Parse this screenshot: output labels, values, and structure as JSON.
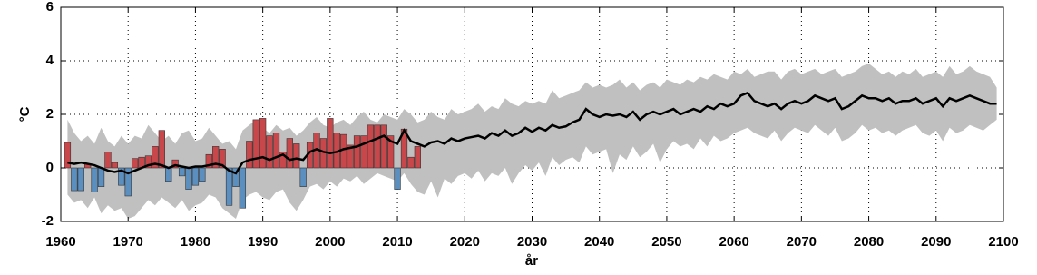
{
  "chart_data": {
    "type": "bar-band-line",
    "xlabel": "år",
    "ylabel": "°C",
    "xlim": [
      1960,
      2100
    ],
    "xticks": [
      1960,
      1970,
      1980,
      1990,
      2000,
      2010,
      2020,
      2030,
      2040,
      2050,
      2060,
      2070,
      2080,
      2090,
      2100
    ],
    "ylim": [
      -2,
      6
    ],
    "yticks": [
      -2,
      0,
      2,
      4,
      6
    ],
    "grid": true,
    "bars": {
      "positive_color": "#c8474b",
      "negative_color": "#5b8fbf",
      "x": [
        1961,
        1962,
        1963,
        1964,
        1965,
        1966,
        1967,
        1968,
        1969,
        1970,
        1971,
        1972,
        1973,
        1974,
        1975,
        1976,
        1977,
        1978,
        1979,
        1980,
        1981,
        1982,
        1983,
        1984,
        1985,
        1986,
        1987,
        1988,
        1989,
        1990,
        1991,
        1992,
        1993,
        1994,
        1995,
        1996,
        1997,
        1998,
        1999,
        2000,
        2001,
        2002,
        2003,
        2004,
        2005,
        2006,
        2007,
        2008,
        2009,
        2010,
        2011,
        2012,
        2013
      ],
      "values": [
        0.95,
        -0.85,
        -0.85,
        0.15,
        -0.9,
        -0.7,
        0.6,
        0.2,
        -0.65,
        -1.05,
        0.35,
        0.4,
        0.45,
        0.8,
        1.4,
        -0.5,
        0.3,
        -0.3,
        -0.8,
        -0.65,
        -0.5,
        0.5,
        0.8,
        0.7,
        -1.4,
        -0.7,
        -1.5,
        1.0,
        1.8,
        1.85,
        1.2,
        1.3,
        0.6,
        1.1,
        0.9,
        -0.7,
        0.95,
        1.3,
        1.1,
        1.85,
        1.3,
        1.25,
        0.85,
        1.2,
        1.2,
        1.6,
        1.6,
        1.6,
        1.2,
        -0.8,
        1.45,
        0.4,
        0.8
      ]
    },
    "x": [
      1961,
      1962,
      1963,
      1964,
      1965,
      1966,
      1967,
      1968,
      1969,
      1970,
      1971,
      1972,
      1973,
      1974,
      1975,
      1976,
      1977,
      1978,
      1979,
      1980,
      1981,
      1982,
      1983,
      1984,
      1985,
      1986,
      1987,
      1988,
      1989,
      1990,
      1991,
      1992,
      1993,
      1994,
      1995,
      1996,
      1997,
      1998,
      1999,
      2000,
      2001,
      2002,
      2003,
      2004,
      2005,
      2006,
      2007,
      2008,
      2009,
      2010,
      2011,
      2012,
      2013,
      2014,
      2015,
      2016,
      2017,
      2018,
      2019,
      2020,
      2021,
      2022,
      2023,
      2024,
      2025,
      2026,
      2027,
      2028,
      2029,
      2030,
      2031,
      2032,
      2033,
      2034,
      2035,
      2036,
      2037,
      2038,
      2039,
      2040,
      2041,
      2042,
      2043,
      2044,
      2045,
      2046,
      2047,
      2048,
      2049,
      2050,
      2051,
      2052,
      2053,
      2054,
      2055,
      2056,
      2057,
      2058,
      2059,
      2060,
      2061,
      2062,
      2063,
      2064,
      2065,
      2066,
      2067,
      2068,
      2069,
      2070,
      2071,
      2072,
      2073,
      2074,
      2075,
      2076,
      2077,
      2078,
      2079,
      2080,
      2081,
      2082,
      2083,
      2084,
      2085,
      2086,
      2087,
      2088,
      2089,
      2090,
      2091,
      2092,
      2093,
      2094,
      2095,
      2096,
      2097,
      2098,
      2099
    ],
    "band": {
      "color": "#c0c0c0",
      "upper": [
        1.8,
        1.3,
        1.0,
        1.2,
        0.9,
        1.5,
        1.0,
        0.8,
        1.2,
        0.9,
        1.2,
        1.1,
        1.6,
        1.3,
        1.0,
        1.2,
        0.9,
        1.3,
        1.4,
        1.0,
        1.1,
        1.5,
        1.2,
        0.9,
        1.0,
        0.7,
        1.4,
        1.6,
        1.8,
        1.5,
        1.3,
        1.6,
        1.4,
        1.5,
        1.2,
        1.4,
        1.7,
        1.9,
        1.6,
        1.5,
        1.7,
        1.8,
        1.6,
        1.9,
        2.1,
        1.8,
        1.7,
        2.0,
        1.9,
        1.8,
        2.2,
        2.0,
        1.7,
        1.8,
        2.1,
        1.9,
        1.8,
        2.2,
        2.0,
        2.1,
        2.2,
        2.4,
        2.1,
        2.3,
        2.2,
        2.6,
        2.4,
        2.3,
        2.5,
        2.4,
        2.5,
        2.4,
        2.9,
        2.6,
        2.7,
        2.8,
        2.9,
        3.2,
        3.0,
        3.1,
        3.0,
        3.1,
        3.3,
        3.0,
        3.2,
        2.9,
        3.1,
        3.2,
        3.0,
        3.3,
        3.2,
        3.1,
        3.3,
        3.2,
        3.4,
        3.3,
        3.5,
        3.4,
        3.3,
        3.6,
        3.5,
        3.7,
        3.4,
        3.5,
        3.6,
        3.6,
        3.3,
        3.6,
        3.7,
        3.5,
        3.6,
        3.7,
        3.5,
        3.6,
        3.7,
        3.4,
        3.5,
        3.6,
        3.8,
        3.9,
        3.7,
        3.5,
        3.6,
        3.4,
        3.6,
        3.5,
        3.7,
        3.4,
        3.5,
        3.6,
        3.4,
        3.8,
        3.5,
        3.6,
        3.8,
        3.6,
        3.5,
        3.4,
        3.0
      ],
      "lower": [
        -1.0,
        -1.3,
        -1.2,
        -1.5,
        -1.1,
        -1.7,
        -1.4,
        -1.6,
        -1.5,
        -1.9,
        -1.8,
        -1.5,
        -1.2,
        -1.4,
        -1.1,
        -1.3,
        -1.5,
        -1.2,
        -1.6,
        -1.4,
        -1.3,
        -1.0,
        -1.1,
        -1.5,
        -1.7,
        -1.9,
        -1.2,
        -1.0,
        -0.9,
        -1.1,
        -1.2,
        -0.9,
        -0.8,
        -1.3,
        -1.6,
        -1.2,
        -0.7,
        -0.6,
        -0.8,
        -0.5,
        -0.7,
        -0.4,
        -0.5,
        -0.3,
        -0.6,
        -0.4,
        -0.2,
        -0.3,
        -0.4,
        -0.5,
        -0.2,
        -0.6,
        -0.9,
        -1.0,
        -0.5,
        -1.1,
        -0.4,
        -0.6,
        -0.3,
        -0.2,
        -0.4,
        -0.1,
        -0.5,
        -0.2,
        -0.3,
        0.0,
        -0.6,
        -0.2,
        0.1,
        -0.1,
        0.2,
        -0.3,
        0.4,
        0.1,
        0.3,
        0.4,
        0.2,
        0.8,
        0.5,
        0.6,
        0.7,
        -0.2,
        0.5,
        0.3,
        0.8,
        0.4,
        0.6,
        0.9,
        0.2,
        0.7,
        1.0,
        0.8,
        0.9,
        0.7,
        1.1,
        0.8,
        1.2,
        1.0,
        1.1,
        1.3,
        1.4,
        1.5,
        1.3,
        1.2,
        1.1,
        1.4,
        1.0,
        1.3,
        1.5,
        1.4,
        1.3,
        1.6,
        1.4,
        1.2,
        1.5,
        1.0,
        1.1,
        1.3,
        1.6,
        1.4,
        1.5,
        1.3,
        1.4,
        1.2,
        1.4,
        1.5,
        1.6,
        1.3,
        1.2,
        1.4,
        1.0,
        1.5,
        1.3,
        1.4,
        1.6,
        1.5,
        1.4,
        1.6,
        1.8
      ]
    },
    "line": {
      "color": "#000000",
      "values": [
        0.2,
        0.15,
        0.2,
        0.15,
        0.1,
        0.0,
        -0.1,
        -0.15,
        -0.1,
        -0.2,
        -0.1,
        0.0,
        0.1,
        0.15,
        0.1,
        0.0,
        0.1,
        0.05,
        0.0,
        0.05,
        0.05,
        0.1,
        0.15,
        0.1,
        -0.1,
        -0.2,
        0.2,
        0.3,
        0.35,
        0.4,
        0.3,
        0.4,
        0.5,
        0.3,
        0.35,
        0.3,
        0.6,
        0.7,
        0.6,
        0.55,
        0.6,
        0.7,
        0.75,
        0.8,
        0.9,
        1.0,
        1.1,
        1.2,
        1.0,
        0.9,
        1.4,
        1.0,
        0.9,
        0.8,
        0.95,
        1.0,
        0.9,
        1.1,
        1.0,
        1.1,
        1.15,
        1.2,
        1.1,
        1.3,
        1.2,
        1.4,
        1.2,
        1.3,
        1.5,
        1.35,
        1.5,
        1.4,
        1.6,
        1.5,
        1.55,
        1.7,
        1.8,
        2.2,
        2.0,
        1.9,
        2.0,
        1.95,
        2.0,
        1.9,
        2.1,
        1.8,
        2.0,
        2.1,
        2.0,
        2.1,
        2.2,
        2.0,
        2.1,
        2.2,
        2.1,
        2.3,
        2.2,
        2.4,
        2.3,
        2.4,
        2.7,
        2.8,
        2.5,
        2.4,
        2.3,
        2.4,
        2.2,
        2.4,
        2.5,
        2.4,
        2.5,
        2.7,
        2.6,
        2.5,
        2.6,
        2.2,
        2.3,
        2.5,
        2.7,
        2.6,
        2.6,
        2.5,
        2.6,
        2.4,
        2.5,
        2.5,
        2.6,
        2.4,
        2.5,
        2.6,
        2.3,
        2.6,
        2.5,
        2.6,
        2.7,
        2.6,
        2.5,
        2.4,
        2.4
      ]
    }
  }
}
